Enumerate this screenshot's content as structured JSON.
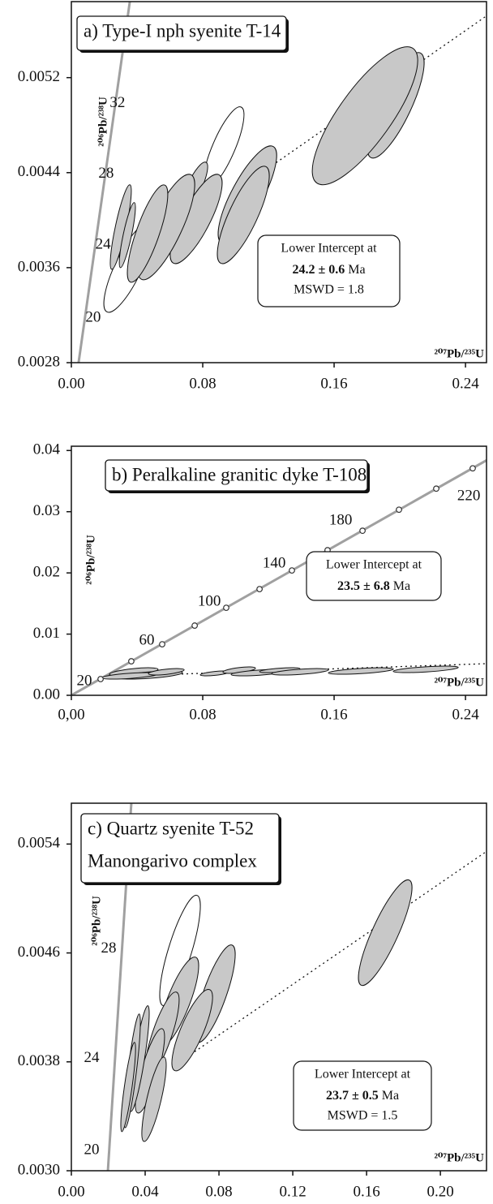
{
  "chart_data": [
    {
      "type": "concordia",
      "title": [
        "a) Type-I nph syenite T-14"
      ],
      "x_label": "²⁰⁷Pb/²³⁵U",
      "y_label": "²⁰⁶Pb/²³⁸U",
      "xlim": [
        0,
        0.2528
      ],
      "ylim": [
        0.0028,
        0.00584
      ],
      "xticks": [
        {
          "value": 0,
          "label": "0.00"
        },
        0.08,
        0.16,
        0.24
      ],
      "yticks": [
        0.0028,
        0.0036,
        0.0044,
        0.0052
      ],
      "concordia": {
        "color": "#a0a0a0",
        "x": [
          0.0044,
          0.0356
        ],
        "y": [
          0.0028,
          0.00584
        ]
      },
      "age_labels": [
        {
          "text": "20",
          "x": 0.0133,
          "y": 0.003176
        },
        {
          "text": "24",
          "x": 0.0193,
          "y": 0.003791
        },
        {
          "text": "28",
          "x": 0.0212,
          "y": 0.004386
        },
        {
          "text": "32",
          "x": 0.0281,
          "y": 0.004981
        }
      ],
      "discordia": {
        "x": [
          0.115,
          0.2528
        ],
        "y": [
          0.00439,
          0.00572
        ]
      },
      "ellipse_color": "#c8c8c8",
      "ellipses": [
        {
          "x": 0.0346,
          "y": 0.0036,
          "x_err": 0.0148,
          "y_err": 0.000376,
          "rho": 0.8,
          "filled": false
        },
        {
          "x": 0.0928,
          "y": 0.004612,
          "x_err": 0.0123,
          "y_err": 0.000342,
          "rho": 0.8,
          "filled": false
        },
        {
          "x": 0.1975,
          "y": 0.004967,
          "x_err": 0.0173,
          "y_err": 0.000444,
          "rho": 0.8,
          "filled": true
        },
        {
          "x": 0.1788,
          "y": 0.004879,
          "x_err": 0.0321,
          "y_err": 0.000581,
          "rho": 0.8,
          "filled": true
        },
        {
          "x": 0.0301,
          "y": 0.003942,
          "x_err": 0.0064,
          "y_err": 0.000356,
          "rho": 0.85,
          "filled": true
        },
        {
          "x": 0.0341,
          "y": 0.003874,
          "x_err": 0.0049,
          "y_err": 0.000274,
          "rho": 0.85,
          "filled": true
        },
        {
          "x": 0.0751,
          "y": 0.004284,
          "x_err": 0.0079,
          "y_err": 0.000205,
          "rho": 0.8,
          "filled": true
        },
        {
          "x": 0.1072,
          "y": 0.004215,
          "x_err": 0.0178,
          "y_err": 0.00041,
          "rho": 0.8,
          "filled": true
        },
        {
          "x": 0.1047,
          "y": 0.004044,
          "x_err": 0.0158,
          "y_err": 0.00041,
          "rho": 0.8,
          "filled": true
        },
        {
          "x": 0.076,
          "y": 0.00401,
          "x_err": 0.0158,
          "y_err": 0.000376,
          "rho": 0.8,
          "filled": true
        },
        {
          "x": 0.0578,
          "y": 0.003942,
          "x_err": 0.0173,
          "y_err": 0.000444,
          "rho": 0.8,
          "filled": true
        },
        {
          "x": 0.0464,
          "y": 0.003887,
          "x_err": 0.0123,
          "y_err": 0.00041,
          "rho": 0.8,
          "filled": true
        }
      ],
      "intercept": {
        "label": "Lower Intercept at",
        "age": "24.2 ± 0.6",
        "unit": "Ma",
        "mswd": "MSWD = 1.8"
      }
    },
    {
      "type": "concordia",
      "title": [
        "b) Peralkaline granitic dyke T-108"
      ],
      "x_label": "²⁰⁷Pb/²³⁵U",
      "y_label": "²⁰⁶Pb/²³⁸U",
      "xlim": [
        0,
        0.2528
      ],
      "ylim": [
        0,
        0.0407
      ],
      "xticks": [
        {
          "value": 0,
          "label": "0,00"
        },
        0.08,
        0.16,
        0.24
      ],
      "yticks": [
        {
          "value": 0,
          "label": "0.00"
        },
        0.01,
        0.02,
        0.03,
        0.04
      ],
      "concordia": {
        "color": "#a0a0a0",
        "x": [
          0,
          0.2528
        ],
        "y": [
          0,
          0.0384
        ]
      },
      "concordia_points": {
        "x": [
          0.0178,
          0.0365,
          0.0553,
          0.0751,
          0.0943,
          0.1146,
          0.1343,
          0.156,
          0.1773,
          0.1995,
          0.2222,
          0.2444
        ],
        "y": [
          0.00265,
          0.00556,
          0.00834,
          0.01139,
          0.0143,
          0.01735,
          0.0204,
          0.02371,
          0.02689,
          0.03033,
          0.03377,
          0.03709
        ]
      },
      "age_labels": [
        {
          "text": "20",
          "x": 0.0079,
          "y": 0.00225
        },
        {
          "text": "60",
          "x": 0.0459,
          "y": 0.00887
        },
        {
          "text": "100",
          "x": 0.084,
          "y": 0.01523
        },
        {
          "text": "140",
          "x": 0.1235,
          "y": 0.02146
        },
        {
          "text": "180",
          "x": 0.164,
          "y": 0.02848
        },
        {
          "text": "220",
          "x": 0.242,
          "y": 0.03245
        }
      ],
      "discordia": {
        "x": [
          0.0198,
          0.2528
        ],
        "y": [
          0.00305,
          0.00517
        ]
      },
      "ellipse_color": "#c8c8c8",
      "ellipses": [
        {
          "x": 0.038,
          "y": 0.00384,
          "x_err": 0.0148,
          "y_err": 0.00066,
          "rho": 0.6,
          "filled": true
        },
        {
          "x": 0.0479,
          "y": 0.00331,
          "x_err": 0.0198,
          "y_err": 0.00066,
          "rho": 0.6,
          "filled": true
        },
        {
          "x": 0.0356,
          "y": 0.00318,
          "x_err": 0.0173,
          "y_err": 0.00053,
          "rho": 0.6,
          "filled": true
        },
        {
          "x": 0.0578,
          "y": 0.00384,
          "x_err": 0.0109,
          "y_err": 0.00053,
          "rho": 0.6,
          "filled": true
        },
        {
          "x": 0.0874,
          "y": 0.00358,
          "x_err": 0.0089,
          "y_err": 0.0004,
          "rho": 0.6,
          "filled": true
        },
        {
          "x": 0.1022,
          "y": 0.00411,
          "x_err": 0.0099,
          "y_err": 0.00053,
          "rho": 0.6,
          "filled": true
        },
        {
          "x": 0.1146,
          "y": 0.00371,
          "x_err": 0.0173,
          "y_err": 0.00053,
          "rho": 0.6,
          "filled": true
        },
        {
          "x": 0.1269,
          "y": 0.00411,
          "x_err": 0.0123,
          "y_err": 0.0004,
          "rho": 0.6,
          "filled": true
        },
        {
          "x": 0.1393,
          "y": 0.00384,
          "x_err": 0.0173,
          "y_err": 0.00053,
          "rho": 0.6,
          "filled": true
        },
        {
          "x": 0.1763,
          "y": 0.00397,
          "x_err": 0.0198,
          "y_err": 0.00053,
          "rho": 0.6,
          "filled": true
        },
        {
          "x": 0.2158,
          "y": 0.00424,
          "x_err": 0.0198,
          "y_err": 0.00053,
          "rho": 0.6,
          "filled": true
        }
      ],
      "intercept": {
        "label": "Lower Intercept at",
        "age": "23.5 ± 6.8",
        "unit": "Ma"
      }
    },
    {
      "type": "concordia",
      "title": [
        "c) Quartz syenite T-52",
        "Manongarivo complex"
      ],
      "x_label": "²⁰⁷Pb/²³⁵U",
      "y_label": "²⁰⁶Pb/²³⁸U",
      "xlim": [
        0,
        0.225
      ],
      "ylim": [
        0.003,
        0.0057
      ],
      "xticks": [
        {
          "value": 0,
          "label": "0.00"
        },
        0.04,
        0.08,
        0.12,
        0.16,
        {
          "value": 0.2,
          "label": "0.20"
        }
      ],
      "yticks": [
        {
          "value": 0.003,
          "label": "0.0030"
        },
        0.0038,
        0.0046,
        0.0054
      ],
      "concordia": {
        "color": "#a0a0a0",
        "x": [
          0.0198,
          0.0325
        ],
        "y": [
          0.003,
          0.0057
        ]
      },
      "age_labels": [
        {
          "text": "20",
          "x": 0.011,
          "y": 0.003149
        },
        {
          "text": "24",
          "x": 0.011,
          "y": 0.003824
        },
        {
          "text": "28",
          "x": 0.0202,
          "y": 0.00463
        }
      ],
      "discordia": {
        "x": [
          0.0646,
          0.225
        ],
        "y": [
          0.003854,
          0.005346
        ]
      },
      "ellipse_color": "#c8c8c8",
      "ellipses": [
        {
          "x": 0.0589,
          "y": 0.004618,
          "x_err": 0.011,
          "y_err": 0.000406,
          "rho": 0.8,
          "filled": false
        },
        {
          "x": 0.1701,
          "y": 0.004749,
          "x_err": 0.0145,
          "y_err": 0.000388,
          "rho": 0.85,
          "filled": true
        },
        {
          "x": 0.0778,
          "y": 0.004301,
          "x_err": 0.011,
          "y_err": 0.000358,
          "rho": 0.8,
          "filled": true
        },
        {
          "x": 0.058,
          "y": 0.004242,
          "x_err": 0.011,
          "y_err": 0.000328,
          "rho": 0.8,
          "filled": true
        },
        {
          "x": 0.0655,
          "y": 0.004033,
          "x_err": 0.011,
          "y_err": 0.000299,
          "rho": 0.8,
          "filled": true
        },
        {
          "x": 0.0492,
          "y": 0.004003,
          "x_err": 0.0092,
          "y_err": 0.00031,
          "rho": 0.8,
          "filled": true
        },
        {
          "x": 0.0426,
          "y": 0.003734,
          "x_err": 0.0079,
          "y_err": 0.00031,
          "rho": 0.8,
          "filled": true
        },
        {
          "x": 0.0448,
          "y": 0.003525,
          "x_err": 0.0066,
          "y_err": 0.00031,
          "rho": 0.8,
          "filled": true
        },
        {
          "x": 0.0369,
          "y": 0.003824,
          "x_err": 0.0053,
          "y_err": 0.000388,
          "rho": 0.85,
          "filled": true
        },
        {
          "x": 0.033,
          "y": 0.003734,
          "x_err": 0.0044,
          "y_err": 0.000418,
          "rho": 0.85,
          "filled": true
        },
        {
          "x": 0.0308,
          "y": 0.003615,
          "x_err": 0.004,
          "y_err": 0.000328,
          "rho": 0.85,
          "filled": true
        }
      ],
      "intercept": {
        "label": "Lower Intercept at",
        "age": "23.7 ± 0.5",
        "unit": "Ma",
        "mswd": "MSWD = 1.5"
      }
    }
  ]
}
